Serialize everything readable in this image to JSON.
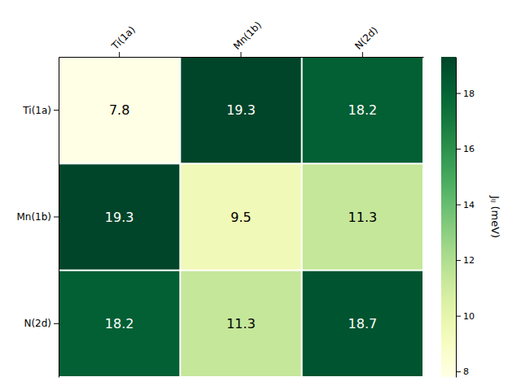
{
  "chart_data": {
    "type": "heatmap",
    "columns": [
      "Ti(1a)",
      "Mn(1b)",
      "N(2d)"
    ],
    "rows": [
      "Ti(1a)",
      "Mn(1b)",
      "N(2d)"
    ],
    "values": [
      [
        7.8,
        19.3,
        18.2
      ],
      [
        19.3,
        9.5,
        11.3
      ],
      [
        18.2,
        11.3,
        18.7
      ]
    ],
    "data_labels": true,
    "colorbar_label": "Jᵢⱼ (meV)",
    "colorbar_lim": [
      7.8,
      19.3
    ],
    "colorbar_ticks": [
      8,
      10,
      12,
      14,
      16,
      18
    ]
  }
}
